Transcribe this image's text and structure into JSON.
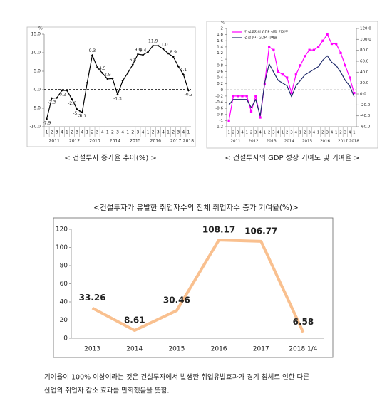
{
  "chart_data": [
    {
      "type": "line",
      "title": "< 건설투자 증가율 추이(%) >",
      "y_unit": "%",
      "categories": [
        "1",
        "2",
        "3",
        "4",
        "1",
        "2",
        "3",
        "4",
        "1",
        "2",
        "3",
        "4",
        "1",
        "2",
        "3",
        "4",
        "1",
        "2",
        "3",
        "4",
        "1",
        "2",
        "3",
        "4",
        "1",
        "2",
        "3",
        "4",
        "1"
      ],
      "groups": [
        "2011",
        "2012",
        "2013",
        "2014",
        "2015",
        "2016",
        "2017",
        "2018"
      ],
      "values": [
        -7.9,
        -2.3,
        -2.2,
        -0.2,
        -0.2,
        -2.6,
        -5.3,
        -6.1,
        1.9,
        9.3,
        6.0,
        4.5,
        2.9,
        3.0,
        -1.3,
        2.4,
        4.5,
        6.8,
        9.6,
        9.4,
        10.2,
        11.9,
        11.9,
        11.0,
        9.8,
        8.9,
        6.3,
        4.1,
        -0.2
      ],
      "value_labels": [
        "-7.9",
        "-2.3",
        null,
        "-0.2",
        null,
        "-2.6",
        "-5.3",
        "-6.1",
        null,
        "9.3",
        null,
        "4.5",
        "2.9",
        null,
        "-1.3",
        null,
        null,
        "6.8",
        "9.6",
        "9.4",
        null,
        "11.9",
        null,
        "11.0",
        null,
        "8.9",
        null,
        "4.1",
        "-0.2"
      ],
      "color": "#000000",
      "marker": "diamond",
      "ylim": [
        -10,
        15
      ],
      "yticks": [
        {
          "value": -10,
          "label": "-10.0"
        },
        {
          "value": -5,
          "label": "-5.0"
        },
        {
          "value": 0,
          "label": "0.0"
        },
        {
          "value": 5,
          "label": "5.0"
        },
        {
          "value": 10,
          "label": "10.0"
        },
        {
          "value": 15,
          "label": "15.0"
        }
      ]
    },
    {
      "type": "line",
      "title": "< 건설투자의 GDP 성장 기여도 및 기여율 >",
      "y_unit": "%",
      "legend": "upper left",
      "categories": [
        "1",
        "2",
        "3",
        "4",
        "1",
        "2",
        "3",
        "4",
        "1",
        "2",
        "3",
        "4",
        "1",
        "2",
        "3",
        "4",
        "1",
        "2",
        "3",
        "4",
        "1",
        "2",
        "3",
        "4",
        "1",
        "2",
        "3",
        "4",
        "1"
      ],
      "groups": [
        "2011",
        "2012",
        "2013",
        "2014",
        "2015",
        "2016",
        "2017",
        "2018"
      ],
      "series": [
        {
          "name": "건설투자의 GDP 성장 기여도",
          "color": "#ff00ff",
          "marker": "square",
          "values": [
            -1.0,
            -0.2,
            -0.2,
            -0.2,
            -0.2,
            -0.7,
            -0.2,
            -0.9,
            0.2,
            1.4,
            1.3,
            0.6,
            0.5,
            0.4,
            -0.1,
            0.5,
            0.8,
            1.1,
            1.3,
            1.3,
            1.4,
            1.6,
            1.8,
            1.5,
            1.5,
            1.2,
            0.8,
            0.4,
            -0.1
          ]
        },
        {
          "name": "건설투자 GDP 기여율",
          "color": "#1f2a6b",
          "axis": "y2",
          "values": [
            -20,
            -10,
            -10,
            -10,
            -10,
            -25,
            -10,
            -40,
            20,
            55,
            40,
            25,
            20,
            15,
            -5,
            15,
            25,
            35,
            40,
            45,
            50,
            62,
            70,
            58,
            52,
            40,
            25,
            15,
            -5
          ]
        }
      ],
      "ylim": [
        -1.2,
        2
      ],
      "yticks": [
        -1.2,
        -1,
        -0.8,
        -0.6,
        -0.4,
        -0.2,
        0,
        0.2,
        0.4,
        0.6,
        0.8,
        1,
        1.2,
        1.4,
        1.6,
        1.8,
        2
      ],
      "y2lim": [
        -60,
        120
      ],
      "y2ticks": [
        {
          "value": -60,
          "label": "-60.0"
        },
        {
          "value": -40,
          "label": "-40.0"
        },
        {
          "value": -20,
          "label": "-20.0"
        },
        {
          "value": 0,
          "label": "0.0"
        },
        {
          "value": 20,
          "label": "20.0"
        },
        {
          "value": 40,
          "label": "40.0"
        },
        {
          "value": 60,
          "label": "60.0"
        },
        {
          "value": 80,
          "label": "80.0"
        },
        {
          "value": 100,
          "label": "100.0"
        },
        {
          "value": 120,
          "label": "120.0"
        }
      ]
    },
    {
      "type": "line",
      "title": "<건설투자가 유발한 취업자수의 전체 취업자수 증가 기여율(%)>",
      "categories": [
        "2013",
        "2014",
        "2015",
        "2016",
        "2017",
        "2018.1/4"
      ],
      "values": [
        33.26,
        8.61,
        30.46,
        108.17,
        106.77,
        6.58
      ],
      "color": "#f9c08f",
      "show_values": true,
      "label_color": "#e87d2a",
      "ylim": [
        0,
        120
      ],
      "yticks": [
        0,
        20,
        40,
        60,
        80,
        100,
        120
      ]
    }
  ],
  "note": [
    "기여율이 100% 이상이라는 것은 건설투자에서 발생한 취업유발효과가 경기 침체로 인한 다른",
    "산업의 취업자 감소 효과를 만회했음을 뜻함."
  ]
}
